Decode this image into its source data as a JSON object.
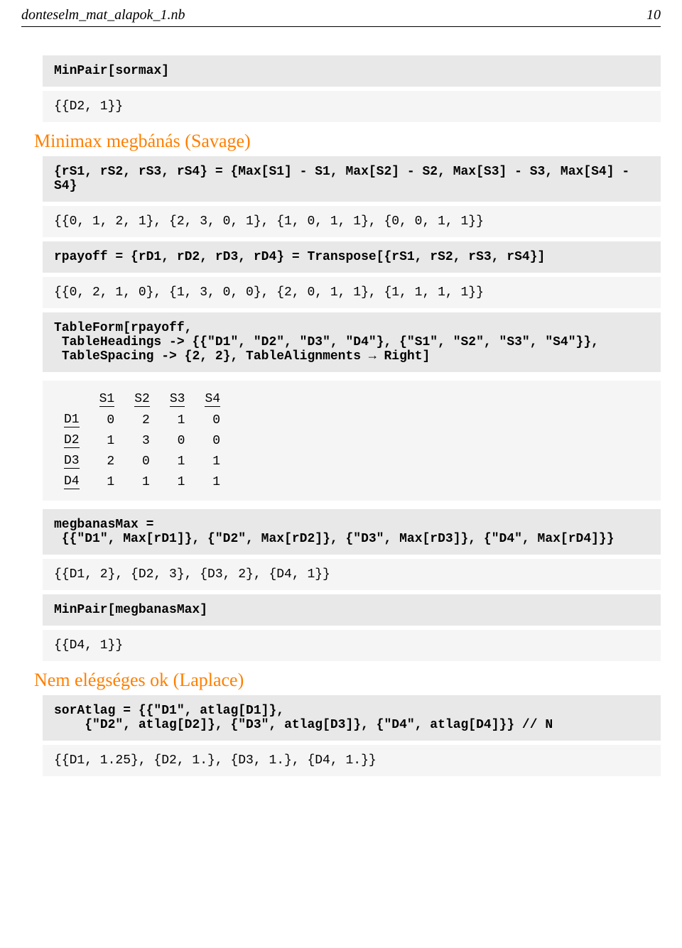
{
  "header": {
    "filename": "donteselm_mat_alapok_1.nb",
    "page_number": "10"
  },
  "cells": [
    {
      "type": "input",
      "text": "MinPair[sormax]"
    },
    {
      "type": "output",
      "text": "{{D2, 1}}"
    }
  ],
  "section1": "Minimax megbánás (Savage)",
  "cells2": [
    {
      "type": "input",
      "text": "{rS1, rS2, rS3, rS4} = {Max[S1] - S1, Max[S2] - S2, Max[S3] - S3, Max[S4] - S4}"
    },
    {
      "type": "output",
      "text": "{{0, 1, 2, 1}, {2, 3, 0, 1}, {1, 0, 1, 1}, {0, 0, 1, 1}}"
    },
    {
      "type": "input",
      "text": "rpayoff = {rD1, rD2, rD3, rD4} = Transpose[{rS1, rS2, rS3, rS4}]"
    },
    {
      "type": "output",
      "text": "{{0, 2, 1, 0}, {1, 3, 0, 0}, {2, 0, 1, 1}, {1, 1, 1, 1}}"
    },
    {
      "type": "input",
      "text": "TableForm[rpayoff,\n TableHeadings -> {{\"D1\", \"D2\", \"D3\", \"D4\"}, {\"S1\", \"S2\", \"S3\", \"S4\"}},\n TableSpacing -> {2, 2}, TableAlignments → Right]"
    }
  ],
  "table": {
    "col_headers": [
      "S1",
      "S2",
      "S3",
      "S4"
    ],
    "row_headers": [
      "D1",
      "D2",
      "D3",
      "D4"
    ],
    "rows": [
      [
        "0",
        "2",
        "1",
        "0"
      ],
      [
        "1",
        "3",
        "0",
        "0"
      ],
      [
        "2",
        "0",
        "1",
        "1"
      ],
      [
        "1",
        "1",
        "1",
        "1"
      ]
    ]
  },
  "cells3": [
    {
      "type": "input",
      "text": "megbanasMax =\n {{\"D1\", Max[rD1]}, {\"D2\", Max[rD2]}, {\"D3\", Max[rD3]}, {\"D4\", Max[rD4]}}"
    },
    {
      "type": "output",
      "text": "{{D1, 2}, {D2, 3}, {D3, 2}, {D4, 1}}"
    },
    {
      "type": "input",
      "text": "MinPair[megbanasMax]"
    },
    {
      "type": "output",
      "text": "{{D4, 1}}"
    }
  ],
  "section2": "Nem elégséges ok (Laplace)",
  "cells4": [
    {
      "type": "input",
      "text": "sorAtlag = {{\"D1\", atlag[D1]},\n    {\"D2\", atlag[D2]}, {\"D3\", atlag[D3]}, {\"D4\", atlag[D4]}} // N"
    },
    {
      "type": "output",
      "text": "{{D1, 1.25}, {D2, 1.}, {D3, 1.}, {D4, 1.}}"
    }
  ],
  "colors": {
    "input_bg": "#e8e8e8",
    "output_bg": "#f5f5f5",
    "heading_color": "#ff7f00",
    "text_color": "#000000",
    "page_bg": "#ffffff"
  }
}
